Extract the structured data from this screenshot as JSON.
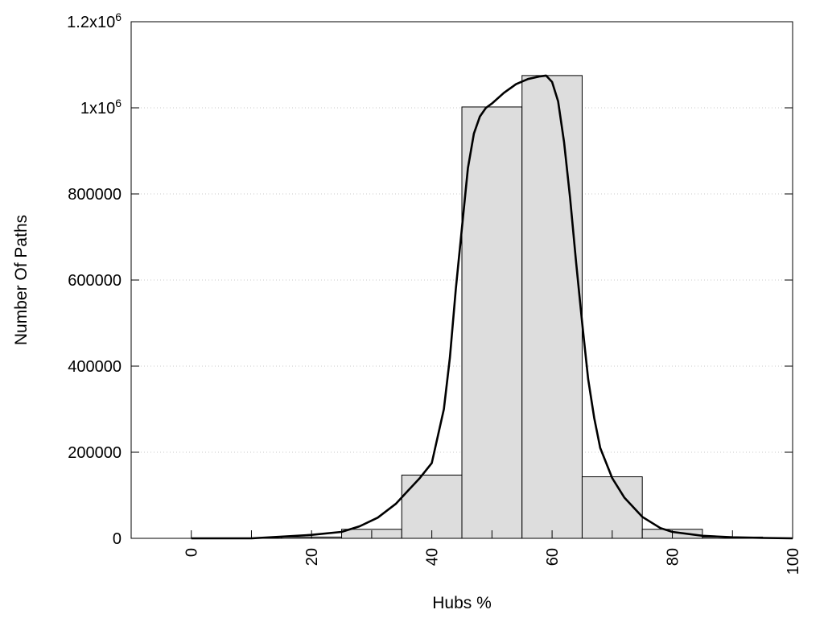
{
  "chart_data": {
    "type": "bar",
    "xlabel": "Hubs %",
    "ylabel": "Number Of Paths",
    "xlim": [
      -10,
      100
    ],
    "ylim": [
      0,
      1200000
    ],
    "grid": "horizontal dotted",
    "bar_color": "#dddddd",
    "bars": [
      {
        "center": 0,
        "value": 0
      },
      {
        "center": 10,
        "value": 0
      },
      {
        "center": 20,
        "value": 3000
      },
      {
        "center": 30,
        "value": 21000
      },
      {
        "center": 40,
        "value": 147000
      },
      {
        "center": 50,
        "value": 1002000
      },
      {
        "center": 60,
        "value": 1075000
      },
      {
        "center": 70,
        "value": 143000
      },
      {
        "center": 80,
        "value": 21000
      },
      {
        "center": 90,
        "value": 3000
      },
      {
        "center": 100,
        "value": 0
      }
    ],
    "bin_width": 10,
    "curve": {
      "x": [
        0,
        10,
        15,
        20,
        25,
        28,
        31,
        34,
        36,
        38,
        40,
        42,
        43,
        44,
        45,
        46,
        47,
        48,
        49,
        50,
        52,
        54,
        56,
        58,
        59,
        60,
        61,
        62,
        63,
        64,
        65,
        66,
        67,
        68,
        70,
        72,
        75,
        78,
        80,
        85,
        90,
        95,
        100
      ],
      "y": [
        0,
        0,
        4000,
        8000,
        15000,
        28000,
        48000,
        80000,
        110000,
        140000,
        175000,
        300000,
        420000,
        580000,
        720000,
        860000,
        940000,
        980000,
        1000000,
        1010000,
        1035000,
        1055000,
        1067000,
        1073000,
        1075000,
        1060000,
        1015000,
        920000,
        790000,
        640000,
        500000,
        370000,
        280000,
        210000,
        140000,
        95000,
        50000,
        24000,
        15000,
        6000,
        2500,
        1000,
        0
      ]
    },
    "y_ticks": [
      {
        "value": 0,
        "label": "0"
      },
      {
        "value": 200000,
        "label": "200000"
      },
      {
        "value": 400000,
        "label": "400000"
      },
      {
        "value": 600000,
        "label": "600000"
      },
      {
        "value": 800000,
        "label": "800000"
      },
      {
        "value": 1000000,
        "label": "1x10",
        "sup": "6"
      },
      {
        "value": 1200000,
        "label": "1.2x10",
        "sup": "6"
      }
    ],
    "x_ticks": [
      {
        "value": 0,
        "label": "0"
      },
      {
        "value": 20,
        "label": "20"
      },
      {
        "value": 40,
        "label": "40"
      },
      {
        "value": 60,
        "label": "60"
      },
      {
        "value": 80,
        "label": "80"
      },
      {
        "value": 100,
        "label": "100"
      }
    ],
    "x_minor_ticks": [
      10,
      30,
      50,
      70,
      90
    ]
  }
}
